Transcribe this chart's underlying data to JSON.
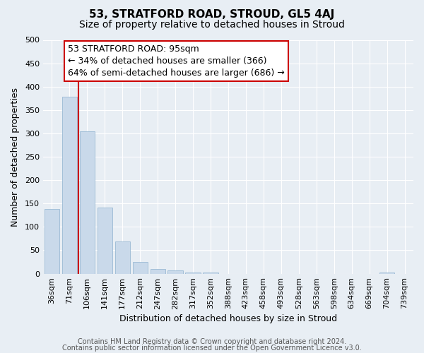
{
  "title": "53, STRATFORD ROAD, STROUD, GL5 4AJ",
  "subtitle": "Size of property relative to detached houses in Stroud",
  "xlabel": "Distribution of detached houses by size in Stroud",
  "ylabel": "Number of detached properties",
  "footer_line1": "Contains HM Land Registry data © Crown copyright and database right 2024.",
  "footer_line2": "Contains public sector information licensed under the Open Government Licence v3.0.",
  "bin_labels": [
    "36sqm",
    "71sqm",
    "106sqm",
    "141sqm",
    "177sqm",
    "212sqm",
    "247sqm",
    "282sqm",
    "317sqm",
    "352sqm",
    "388sqm",
    "423sqm",
    "458sqm",
    "493sqm",
    "528sqm",
    "563sqm",
    "598sqm",
    "634sqm",
    "669sqm",
    "704sqm",
    "739sqm"
  ],
  "bar_values": [
    139,
    378,
    305,
    141,
    69,
    25,
    10,
    7,
    3,
    3,
    0,
    0,
    0,
    0,
    0,
    0,
    0,
    0,
    0,
    3,
    0
  ],
  "bar_color": "#c9d9ea",
  "bar_edgecolor": "#9bbad4",
  "ylim": [
    0,
    500
  ],
  "yticks": [
    0,
    50,
    100,
    150,
    200,
    250,
    300,
    350,
    400,
    450,
    500
  ],
  "vline_x": 1.5,
  "vline_color": "#cc0000",
  "annotation_title": "53 STRATFORD ROAD: 95sqm",
  "annotation_line1": "← 34% of detached houses are smaller (366)",
  "annotation_line2": "64% of semi-detached houses are larger (686) →",
  "annotation_box_facecolor": "#ffffff",
  "annotation_box_edgecolor": "#cc0000",
  "plot_facecolor": "#e8eef4",
  "fig_facecolor": "#e8eef4",
  "grid_color": "#ffffff",
  "title_fontsize": 11,
  "subtitle_fontsize": 10,
  "axis_label_fontsize": 9,
  "tick_fontsize": 8,
  "annotation_fontsize": 9,
  "footer_fontsize": 7
}
